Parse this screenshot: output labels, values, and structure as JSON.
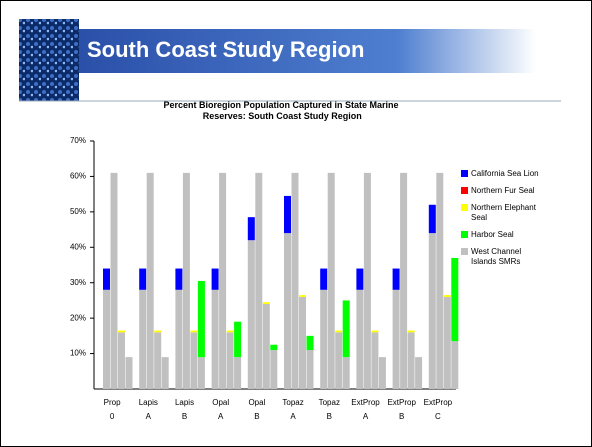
{
  "header": {
    "title": "South Coast Study Region"
  },
  "chart_data": {
    "type": "bar",
    "title": "Percent Bioregion Population Captured in State Marine Reserves: South Coast Study Region",
    "categories": [
      [
        "Prop",
        "0"
      ],
      [
        "Lapis",
        "A"
      ],
      [
        "Lapis",
        "B"
      ],
      [
        "Opal",
        "A"
      ],
      [
        "Opal",
        "B"
      ],
      [
        "Topaz",
        "A"
      ],
      [
        "Topaz",
        "B"
      ],
      [
        "ExtProp",
        "A"
      ],
      [
        "ExtProp",
        "B"
      ],
      [
        "ExtProp",
        "C"
      ]
    ],
    "series": [
      {
        "name": "California Sea Lion",
        "color": "#0000ff",
        "values": [
          6,
          6,
          6,
          6,
          6.5,
          10.5,
          6,
          6,
          6,
          8
        ]
      },
      {
        "name": "Northern Fur Seal",
        "color": "#ff0000",
        "values": [
          0,
          0,
          0,
          0,
          0,
          0,
          0,
          0,
          0,
          0
        ]
      },
      {
        "name": "Northern Elephant Seal",
        "color": "#ffff00",
        "values": [
          0.5,
          0.5,
          0.5,
          0.5,
          0.5,
          0.5,
          0.5,
          0.5,
          0.5,
          0.5
        ]
      },
      {
        "name": "Harbor Seal",
        "color": "#00ff00",
        "values": [
          0,
          0,
          21.5,
          10,
          1.5,
          4,
          16,
          0,
          0,
          23.5
        ]
      },
      {
        "name": "West Channel Islands SMRs",
        "color": "#c0c0c0",
        "values": [
          [
            28,
            61,
            16,
            9
          ],
          [
            28,
            61,
            16,
            9
          ],
          [
            28,
            61,
            16,
            9
          ],
          [
            28,
            61,
            16,
            9
          ],
          [
            42,
            61,
            24,
            11
          ],
          [
            44,
            61,
            26,
            11
          ],
          [
            28,
            61,
            16,
            9
          ],
          [
            28,
            61,
            16,
            9
          ],
          [
            28,
            61,
            16,
            9
          ],
          [
            44,
            61,
            26,
            13.5
          ]
        ]
      }
    ],
    "ylim": [
      0,
      70
    ],
    "yticks": [
      {
        "value": 10,
        "label": "10%"
      },
      {
        "value": 20,
        "label": "20%"
      },
      {
        "value": 30,
        "label": "30%"
      },
      {
        "value": 40,
        "label": "40%"
      },
      {
        "value": 50,
        "label": "50%"
      },
      {
        "value": 60,
        "label": "60%"
      },
      {
        "value": 70,
        "label": "70%"
      }
    ],
    "legend": "right"
  }
}
